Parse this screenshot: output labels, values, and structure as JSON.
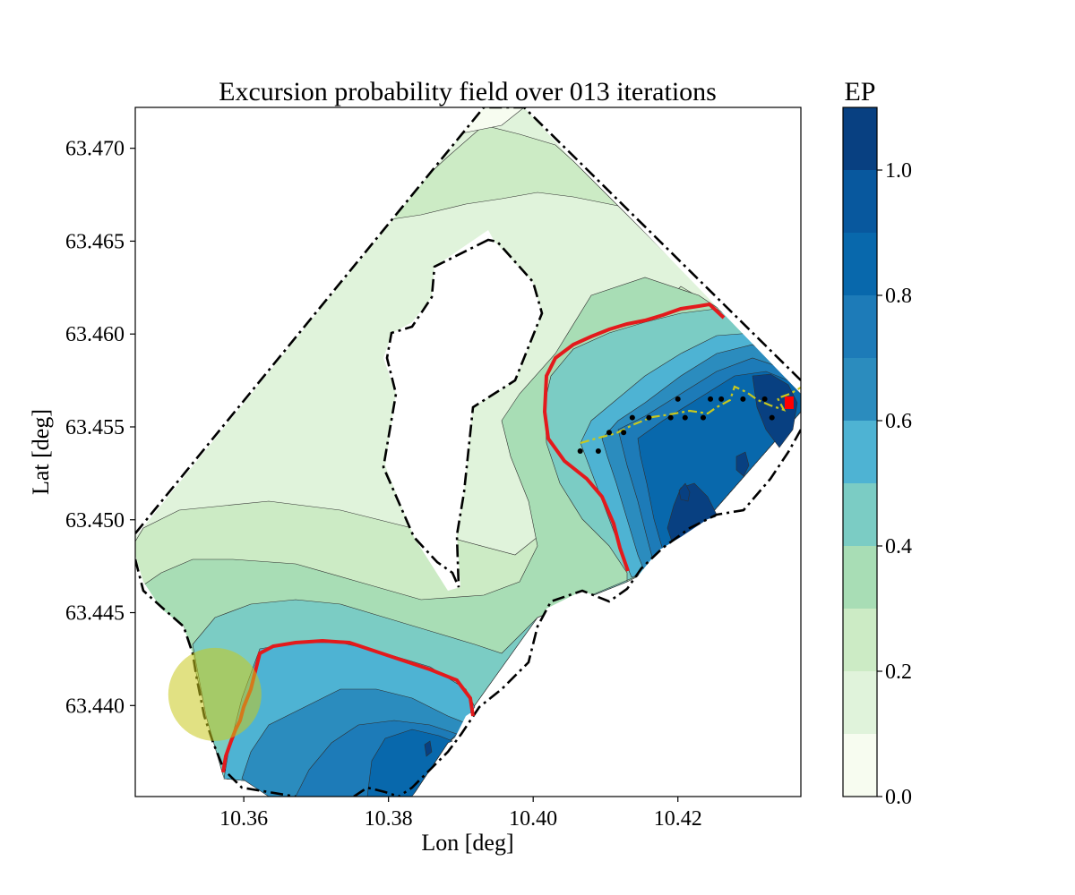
{
  "chart_data": {
    "type": "contour_map",
    "title": "Excursion probability field over 013 iterations",
    "xlabel": "Lon [deg]",
    "ylabel": "Lat [deg]",
    "xlim": [
      10.345,
      10.437
    ],
    "ylim": [
      63.4351,
      63.4722
    ],
    "x_ticks": [
      10.36,
      10.38,
      10.4,
      10.42
    ],
    "x_tick_labels": [
      "10.36",
      "10.38",
      "10.40",
      "10.42"
    ],
    "y_ticks": [
      63.44,
      63.445,
      63.45,
      63.455,
      63.46,
      63.465,
      63.47
    ],
    "y_tick_labels": [
      "63.440",
      "63.445",
      "63.450",
      "63.455",
      "63.460",
      "63.465",
      "63.470"
    ],
    "colorbar": {
      "title": "EP",
      "levels": [
        0.0,
        0.1,
        0.2,
        0.3,
        0.4,
        0.5,
        0.6,
        0.7,
        0.8,
        0.9,
        1.0,
        1.1
      ],
      "colors": [
        "#f7fcf0",
        "#e0f3db",
        "#ccebc5",
        "#a8ddb5",
        "#7bccc4",
        "#4eb3d3",
        "#2b8cbe",
        "#1d7bb8",
        "#0868ac",
        "#08589e",
        "#084081"
      ],
      "ticks": [
        0.0,
        0.2,
        0.4,
        0.6,
        0.8,
        1.0
      ],
      "tick_labels": [
        "0.0",
        "0.2",
        "0.4",
        "0.6",
        "0.8",
        "1.0"
      ]
    },
    "grid": false,
    "excursion_threshold_contour_color": "#e31a1c",
    "boundary_style": "black dash-dot",
    "sampled_locations": [
      {
        "lon": 10.4065,
        "lat": 63.4537
      },
      {
        "lon": 10.409,
        "lat": 63.4537
      },
      {
        "lon": 10.4105,
        "lat": 63.4547
      },
      {
        "lon": 10.4125,
        "lat": 63.4547
      },
      {
        "lon": 10.4137,
        "lat": 63.4555
      },
      {
        "lon": 10.416,
        "lat": 63.4555
      },
      {
        "lon": 10.419,
        "lat": 63.4555
      },
      {
        "lon": 10.42,
        "lat": 63.4565
      },
      {
        "lon": 10.421,
        "lat": 63.4555
      },
      {
        "lon": 10.4235,
        "lat": 63.4555
      },
      {
        "lon": 10.4245,
        "lat": 63.4565
      },
      {
        "lon": 10.426,
        "lat": 63.4565
      },
      {
        "lon": 10.429,
        "lat": 63.4565
      },
      {
        "lon": 10.432,
        "lat": 63.4565
      },
      {
        "lon": 10.433,
        "lat": 63.4555
      }
    ],
    "trajectory_color": "#c8c81e",
    "current_position": {
      "lon": 10.436,
      "lat": 63.4563,
      "color": "#ff0000"
    },
    "target_zone": {
      "lon": 10.356,
      "lat": 63.4406,
      "color": "#c8c81e"
    }
  }
}
